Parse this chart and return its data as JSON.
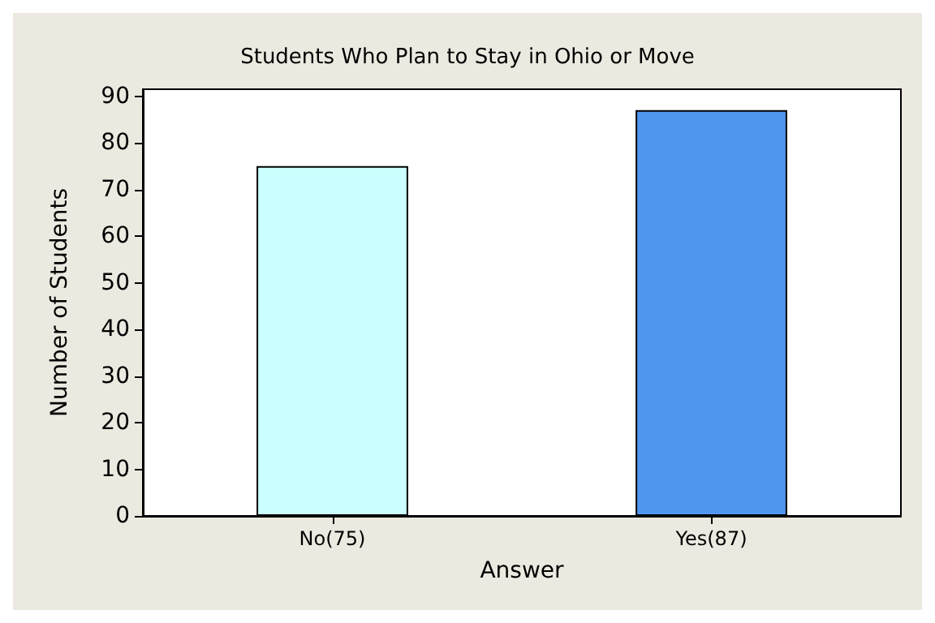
{
  "chart_data": {
    "type": "bar",
    "title": "Students Who Plan to Stay in Ohio or Move",
    "xlabel": "Answer",
    "ylabel": "Number of Students",
    "categories": [
      "No(75)",
      "Yes(87)"
    ],
    "values": [
      75,
      87
    ],
    "colors": [
      "#ccffff",
      "#5096f0"
    ],
    "ylim": [
      0,
      91.5
    ],
    "yticks": [
      0,
      10,
      20,
      30,
      40,
      50,
      60,
      70,
      80,
      90
    ],
    "grid": false
  }
}
